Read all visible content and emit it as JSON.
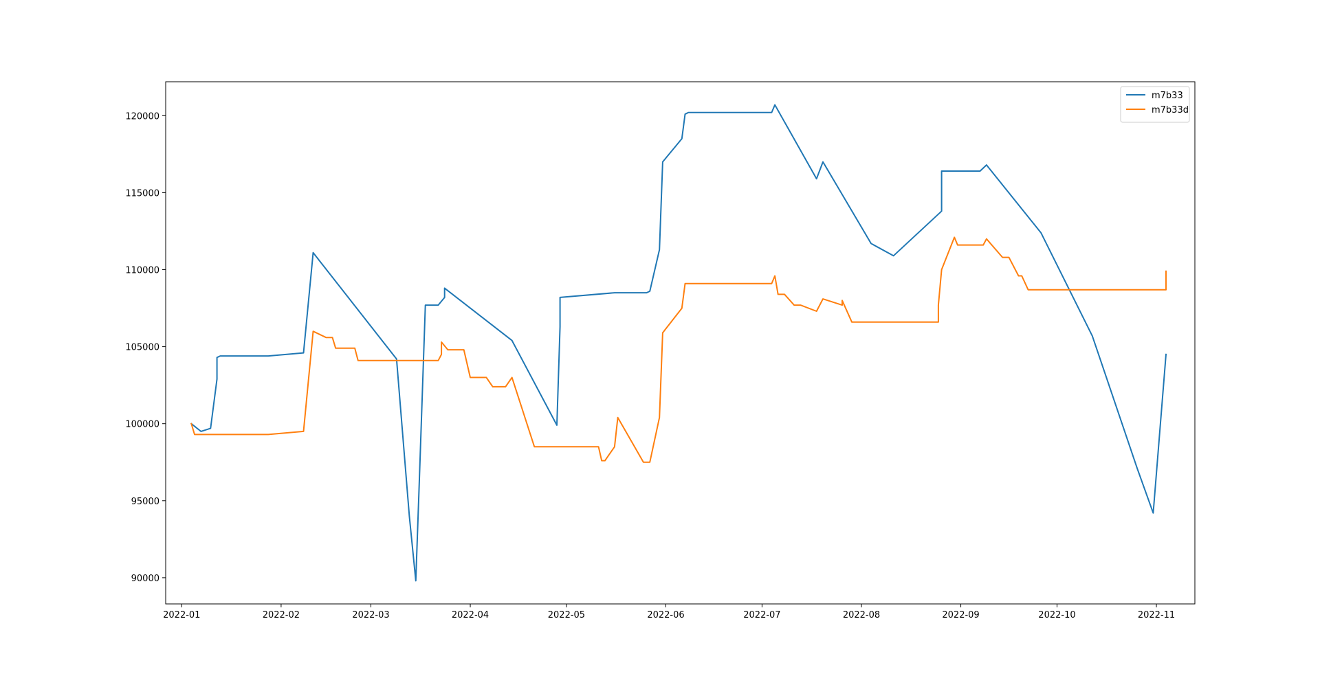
{
  "chart_data": {
    "type": "line",
    "title": "",
    "xlabel": "",
    "ylabel": "",
    "x_axis_type": "date",
    "xlim": [
      "2021-12-27",
      "2022-11-13"
    ],
    "ylim": [
      88300,
      122200
    ],
    "x_ticks": [
      "2022-01",
      "2022-02",
      "2022-03",
      "2022-04",
      "2022-05",
      "2022-06",
      "2022-07",
      "2022-08",
      "2022-09",
      "2022-10",
      "2022-11"
    ],
    "y_ticks": [
      90000,
      95000,
      100000,
      105000,
      110000,
      115000,
      120000
    ],
    "grid": false,
    "legend": {
      "placement": "top-right",
      "entries": [
        "m7b33",
        "m7b33d"
      ]
    },
    "series": [
      {
        "name": "m7b33",
        "color": "#1f77b4",
        "points": [
          [
            "2022-01-04",
            100000
          ],
          [
            "2022-01-07",
            99500
          ],
          [
            "2022-01-10",
            99700
          ],
          [
            "2022-01-12",
            102900
          ],
          [
            "2022-01-12",
            104300
          ],
          [
            "2022-01-13",
            104400
          ],
          [
            "2022-01-28",
            104400
          ],
          [
            "2022-02-08",
            104600
          ],
          [
            "2022-02-11",
            111100
          ],
          [
            "2022-03-09",
            104200
          ],
          [
            "2022-03-13",
            94000
          ],
          [
            "2022-03-15",
            89800
          ],
          [
            "2022-03-16",
            95600
          ],
          [
            "2022-03-18",
            107700
          ],
          [
            "2022-03-22",
            107700
          ],
          [
            "2022-03-24",
            108200
          ],
          [
            "2022-03-24",
            108800
          ],
          [
            "2022-04-14",
            105400
          ],
          [
            "2022-04-28",
            99900
          ],
          [
            "2022-04-29",
            106300
          ],
          [
            "2022-04-29",
            108200
          ],
          [
            "2022-05-16",
            108500
          ],
          [
            "2022-05-26",
            108500
          ],
          [
            "2022-05-27",
            108600
          ],
          [
            "2022-05-30",
            111300
          ],
          [
            "2022-05-31",
            117000
          ],
          [
            "2022-06-06",
            118500
          ],
          [
            "2022-06-07",
            120100
          ],
          [
            "2022-06-08",
            120200
          ],
          [
            "2022-07-04",
            120200
          ],
          [
            "2022-07-05",
            120700
          ],
          [
            "2022-07-18",
            115900
          ],
          [
            "2022-07-20",
            117000
          ],
          [
            "2022-08-04",
            111700
          ],
          [
            "2022-08-11",
            110900
          ],
          [
            "2022-08-26",
            113800
          ],
          [
            "2022-08-26",
            115500
          ],
          [
            "2022-08-26",
            116400
          ],
          [
            "2022-09-07",
            116400
          ],
          [
            "2022-09-09",
            116800
          ],
          [
            "2022-09-26",
            112400
          ],
          [
            "2022-10-12",
            105700
          ],
          [
            "2022-10-26",
            97100
          ],
          [
            "2022-10-31",
            94200
          ],
          [
            "2022-11-04",
            104500
          ]
        ]
      },
      {
        "name": "m7b33d",
        "color": "#ff7f0e",
        "points": [
          [
            "2022-01-04",
            100000
          ],
          [
            "2022-01-05",
            99300
          ],
          [
            "2022-01-28",
            99300
          ],
          [
            "2022-02-08",
            99500
          ],
          [
            "2022-02-11",
            106000
          ],
          [
            "2022-02-15",
            105600
          ],
          [
            "2022-02-17",
            105600
          ],
          [
            "2022-02-18",
            104900
          ],
          [
            "2022-02-24",
            104900
          ],
          [
            "2022-02-25",
            104100
          ],
          [
            "2022-03-22",
            104100
          ],
          [
            "2022-03-23",
            104500
          ],
          [
            "2022-03-23",
            105300
          ],
          [
            "2022-03-25",
            104800
          ],
          [
            "2022-03-30",
            104800
          ],
          [
            "2022-04-01",
            103000
          ],
          [
            "2022-04-06",
            103000
          ],
          [
            "2022-04-08",
            102400
          ],
          [
            "2022-04-12",
            102400
          ],
          [
            "2022-04-14",
            103000
          ],
          [
            "2022-04-21",
            98500
          ],
          [
            "2022-05-11",
            98500
          ],
          [
            "2022-05-12",
            97600
          ],
          [
            "2022-05-13",
            97600
          ],
          [
            "2022-05-16",
            98500
          ],
          [
            "2022-05-17",
            100400
          ],
          [
            "2022-05-25",
            97500
          ],
          [
            "2022-05-27",
            97500
          ],
          [
            "2022-05-30",
            100400
          ],
          [
            "2022-05-31",
            105900
          ],
          [
            "2022-06-06",
            107500
          ],
          [
            "2022-06-07",
            109100
          ],
          [
            "2022-07-04",
            109100
          ],
          [
            "2022-07-05",
            109600
          ],
          [
            "2022-07-06",
            108400
          ],
          [
            "2022-07-08",
            108400
          ],
          [
            "2022-07-11",
            107700
          ],
          [
            "2022-07-13",
            107700
          ],
          [
            "2022-07-18",
            107300
          ],
          [
            "2022-07-20",
            108100
          ],
          [
            "2022-07-26",
            107700
          ],
          [
            "2022-07-26",
            108000
          ],
          [
            "2022-07-29",
            106600
          ],
          [
            "2022-08-25",
            106600
          ],
          [
            "2022-08-25",
            107700
          ],
          [
            "2022-08-26",
            110000
          ],
          [
            "2022-08-30",
            112100
          ],
          [
            "2022-08-31",
            111600
          ],
          [
            "2022-09-08",
            111600
          ],
          [
            "2022-09-09",
            112000
          ],
          [
            "2022-09-14",
            110800
          ],
          [
            "2022-09-16",
            110800
          ],
          [
            "2022-09-19",
            109600
          ],
          [
            "2022-09-20",
            109600
          ],
          [
            "2022-09-22",
            108700
          ],
          [
            "2022-11-04",
            108700
          ],
          [
            "2022-11-04",
            109900
          ]
        ]
      }
    ]
  }
}
